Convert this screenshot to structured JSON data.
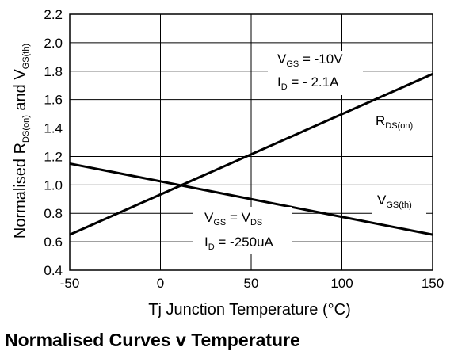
{
  "chart_data": {
    "type": "line",
    "title": "Normalised Curves v Temperature",
    "xlabel": "Tj  Junction Temperature (°C)",
    "ylabel": {
      "parts": [
        {
          "t": "Normalised R"
        },
        {
          "t": "DS(on)",
          "sub": true
        },
        {
          "t": " and V"
        },
        {
          "t": "GS(th)",
          "sub": true
        }
      ]
    },
    "xlim": [
      -50,
      150
    ],
    "ylim": [
      0.4,
      2.2
    ],
    "xticks": [
      "-50",
      "0",
      "50",
      "100",
      "150"
    ],
    "yticks": [
      "0.4",
      "0.6",
      "0.8",
      "1.0",
      "1.2",
      "1.4",
      "1.6",
      "1.8",
      "2.0",
      "2.2"
    ],
    "grid": true,
    "series": [
      {
        "name": "RDS(on)",
        "label_parts": [
          {
            "t": "R"
          },
          {
            "t": "DS(on)",
            "sub": true
          }
        ],
        "x": [
          -50,
          150
        ],
        "y": [
          0.65,
          1.78
        ]
      },
      {
        "name": "VGS(th)",
        "label_parts": [
          {
            "t": "V"
          },
          {
            "t": "GS(th)",
            "sub": true
          }
        ],
        "x": [
          -50,
          150
        ],
        "y": [
          1.15,
          0.65
        ]
      }
    ],
    "annotations": [
      {
        "name": "rds-condition-vgs",
        "parts": [
          {
            "t": "V"
          },
          {
            "t": "GS",
            "sub": true
          },
          {
            "t": " = -10V"
          }
        ]
      },
      {
        "name": "rds-condition-id",
        "parts": [
          {
            "t": "I"
          },
          {
            "t": "D",
            "sub": true
          },
          {
            "t": " = - 2.1A"
          }
        ]
      },
      {
        "name": "vgs-condition-vgs",
        "parts": [
          {
            "t": "V"
          },
          {
            "t": "GS",
            "sub": true
          },
          {
            "t": " = V"
          },
          {
            "t": "DS",
            "sub": true
          }
        ]
      },
      {
        "name": "vgs-condition-id",
        "parts": [
          {
            "t": "I"
          },
          {
            "t": "D",
            "sub": true
          },
          {
            "t": " = -250uA"
          }
        ]
      }
    ]
  }
}
